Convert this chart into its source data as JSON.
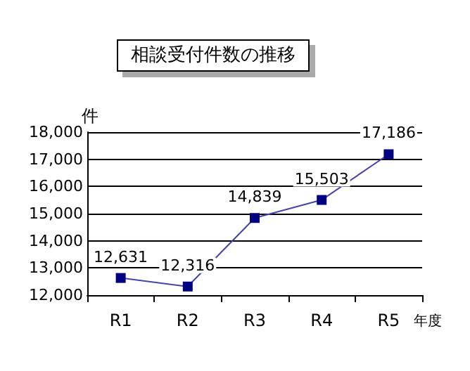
{
  "chart_data": {
    "type": "line",
    "title": "相談受付件数の推移",
    "ylabel": "件",
    "xlabel": "年度",
    "categories": [
      "R1",
      "R2",
      "R3",
      "R4",
      "R5"
    ],
    "series": [
      {
        "color": "#000080",
        "values": [
          12631,
          12316,
          14839,
          15503,
          17186
        ],
        "value_labels": [
          "12,631",
          "12,316",
          "14,839",
          "15,503",
          "17,186"
        ]
      }
    ],
    "ylim": [
      12000,
      18000
    ],
    "yticks": [
      {
        "value": 12000,
        "label": "12,000"
      },
      {
        "value": 13000,
        "label": "13,000"
      },
      {
        "value": 14000,
        "label": "14,000"
      },
      {
        "value": 15000,
        "label": "15,000"
      },
      {
        "value": 16000,
        "label": "16,000"
      },
      {
        "value": 17000,
        "label": "17,000"
      },
      {
        "value": 18000,
        "label": "18,000"
      }
    ],
    "grid": "y",
    "marker": "square",
    "line_style": "solid"
  }
}
